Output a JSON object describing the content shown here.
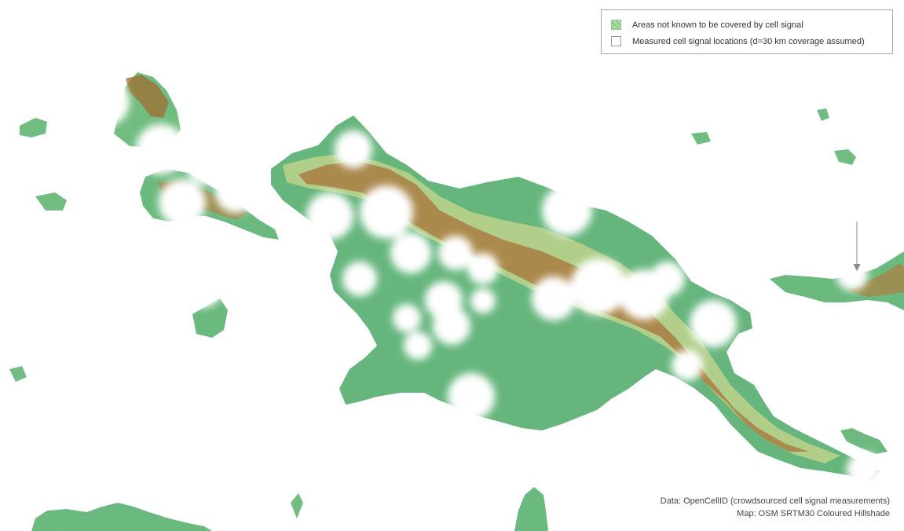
{
  "legend": {
    "items": [
      {
        "label": "Areas not known to be covered by cell signal",
        "swatch": "terrain-pattern"
      },
      {
        "label": "Measured cell signal locations (d=30 km coverage assumed)",
        "swatch": "white-square"
      }
    ]
  },
  "attribution": {
    "data_line": "Data: OpenCellID (crowdsourced cell signal measurements)",
    "map_line": "Map: OSM SRTM30 Coloured Hillshade"
  },
  "colors": {
    "lowland_green": "#61b27a",
    "midland_green": "#a5cf8f",
    "highland_tan": "#cdb277",
    "mountain_brown": "#7a5326",
    "coverage_white": "#ffffff"
  }
}
